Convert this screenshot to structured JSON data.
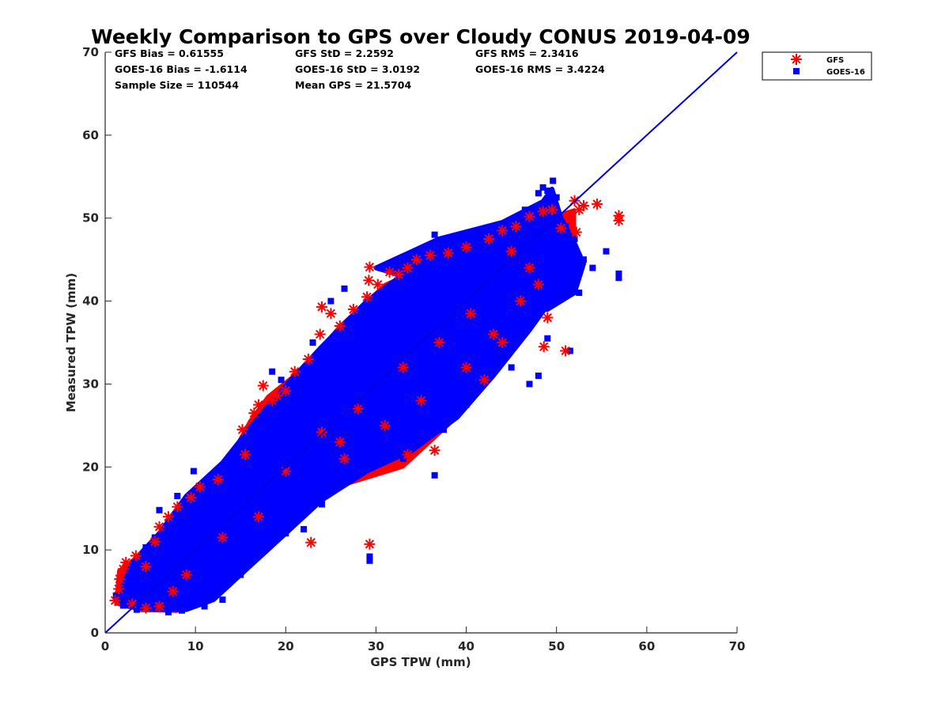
{
  "chart_data": {
    "type": "scatter",
    "title": "Weekly Comparison to GPS over Cloudy CONUS 2019-04-09",
    "xlabel": "GPS TPW (mm)",
    "ylabel": "Measured TPW (mm)",
    "xlim": [
      0,
      70
    ],
    "ylim": [
      0,
      70
    ],
    "xticks": [
      "0",
      "10",
      "20",
      "30",
      "40",
      "50",
      "60",
      "70"
    ],
    "yticks": [
      "0",
      "10",
      "20",
      "30",
      "40",
      "50",
      "60",
      "70"
    ],
    "grid": false,
    "legend_position": "top-right",
    "stats": [
      [
        "GFS Bias = 0.61555",
        "GFS StD = 2.2592",
        "GFS RMS = 2.3416"
      ],
      [
        "GOES-16 Bias = -1.6114",
        "GOES-16 StD = 3.0192",
        "GOES-16 RMS = 3.4224"
      ],
      [
        "Sample Size = 110544",
        "Mean GPS = 21.5704",
        ""
      ]
    ],
    "reference_line": {
      "x": [
        0,
        70
      ],
      "y": [
        0,
        70
      ],
      "color": "#0000dd"
    },
    "series": [
      {
        "name": "GFS",
        "marker": "asterisk",
        "color": "#ff0000",
        "points": [
          [
            1.1,
            3.9
          ],
          [
            1.5,
            5.3
          ],
          [
            1.6,
            6.5
          ],
          [
            2.0,
            7.7
          ],
          [
            2.3,
            8.5
          ],
          [
            3.4,
            9.3
          ],
          [
            4.5,
            8.0
          ],
          [
            5.5,
            11.0
          ],
          [
            6.0,
            12.8
          ],
          [
            7.0,
            14.0
          ],
          [
            8.0,
            15.2
          ],
          [
            9.5,
            16.3
          ],
          [
            10.5,
            17.6
          ],
          [
            12.5,
            18.5
          ],
          [
            15.5,
            21.5
          ],
          [
            15.2,
            24.5
          ],
          [
            16.5,
            26.5
          ],
          [
            17.0,
            27.5
          ],
          [
            17.5,
            29.8
          ],
          [
            18.5,
            28.0
          ],
          [
            19.0,
            28.6
          ],
          [
            20.0,
            29.2
          ],
          [
            21.0,
            31.5
          ],
          [
            22.5,
            33.0
          ],
          [
            23.8,
            36.0
          ],
          [
            24.0,
            39.3
          ],
          [
            25.0,
            38.5
          ],
          [
            26.0,
            37.0
          ],
          [
            27.5,
            39.0
          ],
          [
            29.0,
            40.5
          ],
          [
            29.2,
            42.5
          ],
          [
            29.3,
            44.1
          ],
          [
            30.2,
            42.0
          ],
          [
            31.5,
            43.5
          ],
          [
            32.5,
            43.2
          ],
          [
            33.5,
            44.0
          ],
          [
            34.5,
            45.0
          ],
          [
            36.0,
            45.5
          ],
          [
            38.0,
            45.8
          ],
          [
            40.0,
            46.5
          ],
          [
            42.5,
            47.5
          ],
          [
            44.0,
            48.5
          ],
          [
            45.5,
            49.0
          ],
          [
            47.0,
            50.2
          ],
          [
            48.5,
            50.8
          ],
          [
            49.5,
            51.0
          ],
          [
            50.5,
            48.8
          ],
          [
            52.0,
            52.1
          ],
          [
            52.5,
            51.0
          ],
          [
            53.0,
            51.5
          ],
          [
            54.5,
            51.7
          ],
          [
            56.9,
            50.3
          ],
          [
            56.9,
            49.7
          ],
          [
            52.2,
            48.3
          ],
          [
            51.0,
            34.0
          ],
          [
            48.6,
            34.5
          ],
          [
            43.0,
            36.0
          ],
          [
            46.0,
            40.0
          ],
          [
            48.0,
            42.0
          ],
          [
            49.0,
            38.0
          ],
          [
            47.0,
            44.0
          ],
          [
            45.0,
            46.0
          ],
          [
            29.3,
            10.7
          ],
          [
            22.8,
            10.9
          ],
          [
            24.0,
            24.2
          ],
          [
            36.5,
            22.0
          ],
          [
            33.5,
            21.5
          ],
          [
            26.5,
            21.0
          ],
          [
            20.0,
            19.5
          ],
          [
            17.0,
            14.0
          ],
          [
            13.0,
            11.5
          ],
          [
            9.0,
            7.0
          ],
          [
            7.5,
            5.0
          ],
          [
            6.0,
            3.2
          ],
          [
            4.5,
            3.0
          ],
          [
            3.0,
            3.5
          ],
          [
            26.0,
            23.0
          ],
          [
            31.0,
            25.0
          ],
          [
            35.0,
            28.0
          ],
          [
            40.0,
            32.0
          ],
          [
            42.0,
            30.5
          ],
          [
            44.0,
            35.0
          ],
          [
            40.5,
            38.5
          ],
          [
            37.0,
            35.0
          ],
          [
            33.0,
            32.0
          ],
          [
            28.0,
            27.0
          ]
        ]
      },
      {
        "name": "GOES-16",
        "marker": "square",
        "color": "#0000ff",
        "points": [
          [
            1.2,
            4.5
          ],
          [
            2.0,
            3.3
          ],
          [
            3.5,
            2.8
          ],
          [
            5.0,
            3.0
          ],
          [
            7.0,
            2.5
          ],
          [
            8.5,
            2.7
          ],
          [
            11.0,
            3.2
          ],
          [
            13.0,
            4.0
          ],
          [
            4.5,
            10.3
          ],
          [
            5.5,
            11.5
          ],
          [
            6.0,
            14.8
          ],
          [
            8.0,
            16.5
          ],
          [
            9.8,
            19.5
          ],
          [
            12.0,
            19.0
          ],
          [
            15.0,
            22.0
          ],
          [
            18.5,
            31.5
          ],
          [
            19.5,
            30.5
          ],
          [
            23.0,
            35.0
          ],
          [
            25.0,
            40.0
          ],
          [
            26.5,
            41.5
          ],
          [
            26.8,
            36.0
          ],
          [
            29.0,
            38.0
          ],
          [
            30.5,
            44.0
          ],
          [
            31.5,
            40.5
          ],
          [
            36.5,
            48.0
          ],
          [
            37.0,
            45.0
          ],
          [
            39.5,
            44.5
          ],
          [
            43.0,
            48.5
          ],
          [
            44.5,
            47.0
          ],
          [
            46.5,
            51.0
          ],
          [
            48.0,
            53.0
          ],
          [
            48.5,
            53.7
          ],
          [
            49.0,
            53.3
          ],
          [
            49.6,
            54.5
          ],
          [
            50.0,
            52.5
          ],
          [
            51.0,
            49.0
          ],
          [
            52.0,
            47.5
          ],
          [
            53.0,
            45.0
          ],
          [
            54.0,
            44.0
          ],
          [
            55.5,
            46.0
          ],
          [
            56.9,
            43.3
          ],
          [
            56.9,
            42.8
          ],
          [
            52.5,
            41.0
          ],
          [
            51.5,
            34.0
          ],
          [
            49.0,
            35.5
          ],
          [
            48.0,
            31.0
          ],
          [
            47.0,
            30.0
          ],
          [
            45.0,
            32.0
          ],
          [
            40.0,
            27.5
          ],
          [
            37.5,
            24.5
          ],
          [
            36.5,
            19.0
          ],
          [
            33.0,
            21.0
          ],
          [
            31.0,
            21.5
          ],
          [
            29.3,
            9.2
          ],
          [
            29.3,
            8.7
          ],
          [
            26.5,
            19.5
          ],
          [
            24.0,
            15.5
          ],
          [
            22.0,
            12.5
          ],
          [
            20.0,
            12.0
          ],
          [
            17.0,
            9.5
          ],
          [
            15.0,
            7.0
          ],
          [
            19.5,
            28.0
          ],
          [
            33.0,
            35.0
          ],
          [
            41.0,
            43.0
          ],
          [
            52.0,
            43.5
          ],
          [
            50.0,
            42.5
          ],
          [
            46.0,
            45.0
          ],
          [
            44.5,
            36.0
          ],
          [
            41.0,
            39.0
          ],
          [
            38.0,
            37.0
          ],
          [
            35.0,
            33.0
          ],
          [
            32.0,
            30.0
          ],
          [
            28.0,
            27.0
          ],
          [
            25.0,
            26.0
          ],
          [
            22.0,
            20.5
          ],
          [
            16.0,
            15.0
          ],
          [
            12.0,
            11.0
          ],
          [
            9.0,
            8.0
          ]
        ]
      }
    ]
  }
}
